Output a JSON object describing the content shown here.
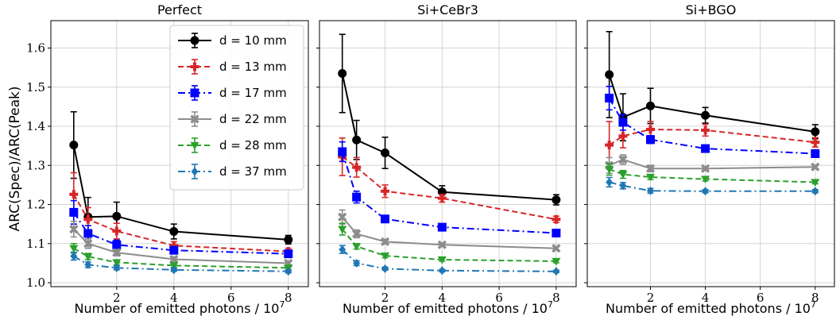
{
  "figure": {
    "ylabel": "ARC(Spec)/ARC(Peak)",
    "xlabel": "Number of emitted photons / 10",
    "xlabel_exp": "7"
  },
  "legend": {
    "placement": "panel-1 top-right",
    "entries": [
      "d = 10 mm",
      "d = 13 mm",
      "d = 17 mm",
      "d = 22 mm",
      "d = 28 mm",
      "d = 37 mm"
    ]
  },
  "chart_data": [
    {
      "type": "line",
      "title": "Perfect",
      "x": [
        0.5,
        1.0,
        2.0,
        4.0,
        8.0
      ],
      "xlim": [
        -0.3,
        8.7
      ],
      "ylim": [
        0.99,
        1.67
      ],
      "xticks": [
        2,
        4,
        6,
        8
      ],
      "yticks": [
        1.0,
        1.1,
        1.2,
        1.3,
        1.4,
        1.5,
        1.6
      ],
      "grid": true,
      "series": [
        {
          "name": "d = 10 mm",
          "color": "#000000",
          "marker": "circle",
          "dash": "solid",
          "values": [
            1.352,
            1.168,
            1.17,
            1.131,
            1.11
          ],
          "errors": [
            0.085,
            0.05,
            0.036,
            0.019,
            0.011
          ]
        },
        {
          "name": "d = 13 mm",
          "color": "#d62728",
          "marker": "plus",
          "dash": "dashed",
          "values": [
            1.226,
            1.162,
            1.132,
            1.095,
            1.08
          ],
          "errors": [
            0.055,
            0.03,
            0.02,
            0.01,
            0.008
          ]
        },
        {
          "name": "d = 17 mm",
          "color": "#0000ff",
          "marker": "square",
          "dash": "dashdot",
          "values": [
            1.18,
            1.126,
            1.097,
            1.083,
            1.074
          ],
          "errors": [
            0.03,
            0.02,
            0.012,
            0.008,
            0.006
          ]
        },
        {
          "name": "d = 22 mm",
          "color": "#8c8c8c",
          "marker": "x",
          "dash": "solid",
          "values": [
            1.137,
            1.1,
            1.077,
            1.06,
            1.05
          ],
          "errors": [
            0.02,
            0.012,
            0.008,
            0.006,
            0.005
          ]
        },
        {
          "name": "d = 28 mm",
          "color": "#2ca02c",
          "marker": "triangle-down",
          "dash": "dashed",
          "values": [
            1.088,
            1.067,
            1.052,
            1.044,
            1.038
          ],
          "errors": [
            0.012,
            0.008,
            0.006,
            0.005,
            0.004
          ]
        },
        {
          "name": "d = 37 mm",
          "color": "#1f77b4",
          "marker": "diamond",
          "dash": "dashdot",
          "values": [
            1.068,
            1.046,
            1.038,
            1.033,
            1.029
          ],
          "errors": [
            0.01,
            0.007,
            0.005,
            0.004,
            0.004
          ]
        }
      ]
    },
    {
      "type": "line",
      "title": "Si+CeBr3",
      "x": [
        0.5,
        1.0,
        2.0,
        4.0,
        8.0
      ],
      "xlim": [
        -0.3,
        8.7
      ],
      "ylim": [
        0.99,
        1.67
      ],
      "xticks": [
        2,
        4,
        6,
        8
      ],
      "yticks": [
        1.0,
        1.1,
        1.2,
        1.3,
        1.4,
        1.5,
        1.6
      ],
      "grid": true,
      "series": [
        {
          "name": "d = 10 mm",
          "color": "#000000",
          "marker": "circle",
          "dash": "solid",
          "values": [
            1.535,
            1.365,
            1.332,
            1.232,
            1.212
          ],
          "errors": [
            0.1,
            0.05,
            0.04,
            0.016,
            0.013
          ]
        },
        {
          "name": "d = 13 mm",
          "color": "#d62728",
          "marker": "plus",
          "dash": "dashed",
          "values": [
            1.322,
            1.295,
            1.234,
            1.216,
            1.162
          ],
          "errors": [
            0.048,
            0.025,
            0.016,
            0.01,
            0.008
          ]
        },
        {
          "name": "d = 17 mm",
          "color": "#0000ff",
          "marker": "square",
          "dash": "dashdot",
          "values": [
            1.335,
            1.219,
            1.163,
            1.142,
            1.127
          ],
          "errors": [
            0.025,
            0.015,
            0.008,
            0.006,
            0.005
          ]
        },
        {
          "name": "d = 22 mm",
          "color": "#8c8c8c",
          "marker": "x",
          "dash": "solid",
          "values": [
            1.168,
            1.125,
            1.105,
            1.097,
            1.088
          ],
          "errors": [
            0.018,
            0.01,
            0.006,
            0.004,
            0.004
          ]
        },
        {
          "name": "d = 28 mm",
          "color": "#2ca02c",
          "marker": "triangle-down",
          "dash": "dashed",
          "values": [
            1.137,
            1.093,
            1.069,
            1.059,
            1.055
          ],
          "errors": [
            0.015,
            0.007,
            0.005,
            0.004,
            0.004
          ]
        },
        {
          "name": "d = 37 mm",
          "color": "#1f77b4",
          "marker": "diamond",
          "dash": "dashdot",
          "values": [
            1.085,
            1.05,
            1.036,
            1.031,
            1.029
          ],
          "errors": [
            0.01,
            0.006,
            0.004,
            0.003,
            0.003
          ]
        }
      ]
    },
    {
      "type": "line",
      "title": "Si+BGO",
      "x": [
        0.5,
        1.0,
        2.0,
        4.0,
        8.0
      ],
      "xlim": [
        -0.3,
        8.7
      ],
      "ylim": [
        0.99,
        1.67
      ],
      "xticks": [
        2,
        4,
        6,
        8
      ],
      "yticks": [
        1.0,
        1.1,
        1.2,
        1.3,
        1.4,
        1.5,
        1.6
      ],
      "grid": true,
      "series": [
        {
          "name": "d = 10 mm",
          "color": "#000000",
          "marker": "circle",
          "dash": "solid",
          "values": [
            1.532,
            1.423,
            1.452,
            1.428,
            1.386
          ],
          "errors": [
            0.11,
            0.06,
            0.045,
            0.02,
            0.018
          ]
        },
        {
          "name": "d = 13 mm",
          "color": "#d62728",
          "marker": "plus",
          "dash": "dashed",
          "values": [
            1.352,
            1.375,
            1.392,
            1.39,
            1.359
          ],
          "errors": [
            0.06,
            0.03,
            0.02,
            0.015,
            0.012
          ]
        },
        {
          "name": "d = 17 mm",
          "color": "#0000ff",
          "marker": "square",
          "dash": "dashdot",
          "values": [
            1.472,
            1.41,
            1.366,
            1.343,
            1.33
          ],
          "errors": [
            0.03,
            0.02,
            0.01,
            0.008,
            0.006
          ]
        },
        {
          "name": "d = 22 mm",
          "color": "#8c8c8c",
          "marker": "x",
          "dash": "solid",
          "values": [
            1.3,
            1.315,
            1.292,
            1.292,
            1.296
          ],
          "errors": [
            0.02,
            0.012,
            0.008,
            0.005,
            0.004
          ]
        },
        {
          "name": "d = 28 mm",
          "color": "#2ca02c",
          "marker": "triangle-down",
          "dash": "dashed",
          "values": [
            1.29,
            1.277,
            1.27,
            1.265,
            1.257
          ],
          "errors": [
            0.015,
            0.01,
            0.006,
            0.005,
            0.004
          ]
        },
        {
          "name": "d = 37 mm",
          "color": "#1f77b4",
          "marker": "diamond",
          "dash": "dashdot",
          "values": [
            1.257,
            1.248,
            1.235,
            1.234,
            1.234
          ],
          "errors": [
            0.012,
            0.008,
            0.006,
            0.004,
            0.004
          ]
        }
      ]
    }
  ]
}
